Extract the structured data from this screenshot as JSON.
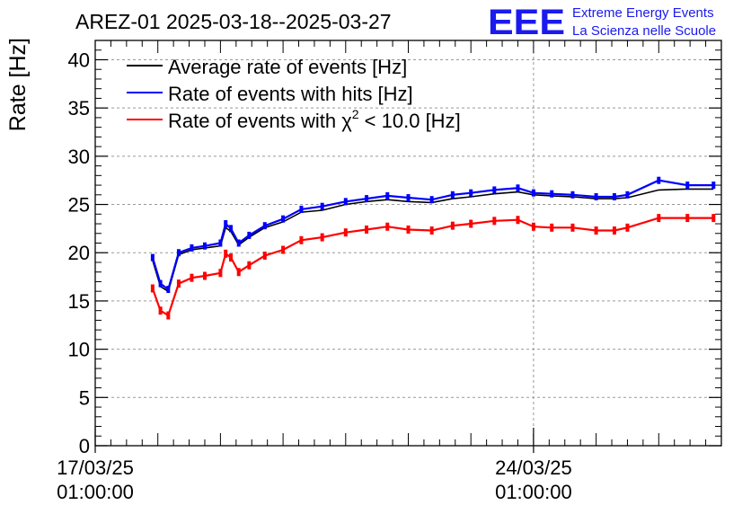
{
  "chart_data": {
    "type": "line",
    "title": "AREZ-01 2025-03-18--2025-03-27",
    "ylabel": "Rate [Hz]",
    "xlabel": "",
    "ylim": [
      0,
      42
    ],
    "yticks": [
      0,
      5,
      10,
      15,
      20,
      25,
      30,
      35,
      40
    ],
    "x_range_days": [
      "2025-03-17 01:00:00",
      "2025-03-27 01:00:00"
    ],
    "x_tick_labels": [
      {
        "date": "2025-03-17 01:00:00",
        "line1": "17/03/25",
        "line2": "01:00:00"
      },
      {
        "date": "2025-03-24 01:00:00",
        "line1": "24/03/25",
        "line2": "01:00:00"
      }
    ],
    "grid": true,
    "legend_placement": "top-left",
    "legend": [
      {
        "key": "avg",
        "label_prefix": "Average rate of events [Hz]",
        "label_sup": "",
        "label_suffix": "",
        "color": "#000000"
      },
      {
        "key": "hits",
        "label_prefix": "Rate of events with hits [Hz]",
        "label_sup": "",
        "label_suffix": "",
        "color": "#0000ff"
      },
      {
        "key": "chi2",
        "label_prefix": "Rate of events with χ",
        "label_sup": "2",
        "label_suffix": " < 10.0 [Hz]",
        "color": "#ff0000"
      }
    ],
    "series": [
      {
        "key": "avg",
        "color": "#000000",
        "x": [
          "2025-03-17 23:00",
          "2025-03-18 02:00",
          "2025-03-18 05:00",
          "2025-03-18 09:00",
          "2025-03-18 14:00",
          "2025-03-18 19:00",
          "2025-03-19 01:00",
          "2025-03-19 03:00",
          "2025-03-19 05:00",
          "2025-03-19 08:00",
          "2025-03-19 12:00",
          "2025-03-19 18:00",
          "2025-03-20 01:00",
          "2025-03-20 08:00",
          "2025-03-20 16:00",
          "2025-03-21 01:00",
          "2025-03-21 09:00",
          "2025-03-21 17:00",
          "2025-03-22 01:00",
          "2025-03-22 10:00",
          "2025-03-22 18:00",
          "2025-03-23 01:00",
          "2025-03-23 10:00",
          "2025-03-23 19:00",
          "2025-03-24 01:00",
          "2025-03-24 08:00",
          "2025-03-24 16:00",
          "2025-03-25 01:00",
          "2025-03-25 08:00",
          "2025-03-25 13:00",
          "2025-03-26 01:00",
          "2025-03-26 12:00",
          "2025-03-26 22:00"
        ],
        "y": [
          19.2,
          16.5,
          16.0,
          19.8,
          20.3,
          20.5,
          20.7,
          22.6,
          22.2,
          20.8,
          21.6,
          22.6,
          23.2,
          24.2,
          24.4,
          25.0,
          25.3,
          25.5,
          25.3,
          25.2,
          25.6,
          25.8,
          26.1,
          26.3,
          26.0,
          25.9,
          25.8,
          25.6,
          25.6,
          25.7,
          26.5,
          26.6,
          26.6
        ]
      },
      {
        "key": "hits",
        "color": "#0000ff",
        "x": [
          "2025-03-17 23:00",
          "2025-03-18 02:00",
          "2025-03-18 05:00",
          "2025-03-18 09:00",
          "2025-03-18 14:00",
          "2025-03-18 19:00",
          "2025-03-19 01:00",
          "2025-03-19 03:00",
          "2025-03-19 05:00",
          "2025-03-19 08:00",
          "2025-03-19 12:00",
          "2025-03-19 18:00",
          "2025-03-20 01:00",
          "2025-03-20 08:00",
          "2025-03-20 16:00",
          "2025-03-21 01:00",
          "2025-03-21 09:00",
          "2025-03-21 17:00",
          "2025-03-22 01:00",
          "2025-03-22 10:00",
          "2025-03-22 18:00",
          "2025-03-23 01:00",
          "2025-03-23 10:00",
          "2025-03-23 19:00",
          "2025-03-24 01:00",
          "2025-03-24 08:00",
          "2025-03-24 16:00",
          "2025-03-25 01:00",
          "2025-03-25 08:00",
          "2025-03-25 13:00",
          "2025-03-26 01:00",
          "2025-03-26 12:00",
          "2025-03-26 22:00"
        ],
        "y": [
          19.5,
          16.8,
          16.2,
          20.0,
          20.5,
          20.7,
          21.0,
          23.0,
          22.5,
          21.0,
          21.8,
          22.8,
          23.5,
          24.5,
          24.8,
          25.3,
          25.6,
          25.9,
          25.7,
          25.5,
          26.0,
          26.2,
          26.5,
          26.7,
          26.2,
          26.1,
          26.0,
          25.8,
          25.8,
          26.0,
          27.5,
          27.0,
          27.0
        ]
      },
      {
        "key": "chi2",
        "color": "#ff0000",
        "x": [
          "2025-03-17 23:00",
          "2025-03-18 02:00",
          "2025-03-18 05:00",
          "2025-03-18 09:00",
          "2025-03-18 14:00",
          "2025-03-18 19:00",
          "2025-03-19 01:00",
          "2025-03-19 03:00",
          "2025-03-19 05:00",
          "2025-03-19 08:00",
          "2025-03-19 12:00",
          "2025-03-19 18:00",
          "2025-03-20 01:00",
          "2025-03-20 08:00",
          "2025-03-20 16:00",
          "2025-03-21 01:00",
          "2025-03-21 09:00",
          "2025-03-21 17:00",
          "2025-03-22 01:00",
          "2025-03-22 10:00",
          "2025-03-22 18:00",
          "2025-03-23 01:00",
          "2025-03-23 10:00",
          "2025-03-23 19:00",
          "2025-03-24 01:00",
          "2025-03-24 08:00",
          "2025-03-24 16:00",
          "2025-03-25 01:00",
          "2025-03-25 08:00",
          "2025-03-25 13:00",
          "2025-03-26 01:00",
          "2025-03-26 12:00",
          "2025-03-26 22:00"
        ],
        "y": [
          16.3,
          14.0,
          13.5,
          16.8,
          17.4,
          17.6,
          17.9,
          19.9,
          19.5,
          18.0,
          18.7,
          19.7,
          20.3,
          21.3,
          21.6,
          22.1,
          22.4,
          22.7,
          22.4,
          22.3,
          22.8,
          23.0,
          23.3,
          23.4,
          22.7,
          22.6,
          22.6,
          22.3,
          22.3,
          22.6,
          23.6,
          23.6,
          23.6
        ]
      }
    ]
  },
  "logo": {
    "mark": "EEE",
    "line1": "Extreme Energy Events",
    "line2": "La Scienza nelle Scuole"
  }
}
